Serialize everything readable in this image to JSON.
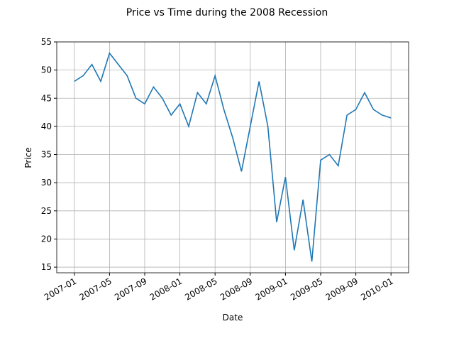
{
  "chart_data": {
    "type": "line",
    "title": "Price vs Time during the 2008 Recession",
    "xlabel": "Date",
    "ylabel": "Price",
    "x": [
      "2007-01",
      "2007-02",
      "2007-03",
      "2007-04",
      "2007-05",
      "2007-06",
      "2007-07",
      "2007-08",
      "2007-09",
      "2007-10",
      "2007-11",
      "2007-12",
      "2008-01",
      "2008-02",
      "2008-03",
      "2008-04",
      "2008-05",
      "2008-06",
      "2008-07",
      "2008-08",
      "2008-09",
      "2008-10",
      "2008-11",
      "2008-12",
      "2009-01",
      "2009-02",
      "2009-03",
      "2009-04",
      "2009-05",
      "2009-06",
      "2009-07",
      "2009-08",
      "2009-09",
      "2009-10",
      "2009-11",
      "2009-12",
      "2010-01"
    ],
    "series": [
      {
        "name": "Price",
        "color": "#1f77b4",
        "values": [
          48,
          49,
          51,
          48,
          53,
          51,
          49,
          45,
          44,
          47,
          45,
          42,
          44,
          40,
          46,
          44,
          49,
          43,
          38,
          32,
          40,
          48,
          40,
          23,
          31,
          18,
          27,
          16,
          34,
          35,
          33,
          42,
          43,
          46,
          43,
          42,
          41.5
        ]
      }
    ],
    "xlim": [
      "2006-11",
      "2010-03"
    ],
    "xticks": [
      "2007-01",
      "2007-05",
      "2007-09",
      "2008-01",
      "2008-05",
      "2008-09",
      "2009-01",
      "2009-05",
      "2009-09",
      "2010-01"
    ],
    "ylim": [
      14,
      55
    ],
    "yticks": [
      15,
      20,
      25,
      30,
      35,
      40,
      45,
      50,
      55
    ],
    "grid": true
  }
}
